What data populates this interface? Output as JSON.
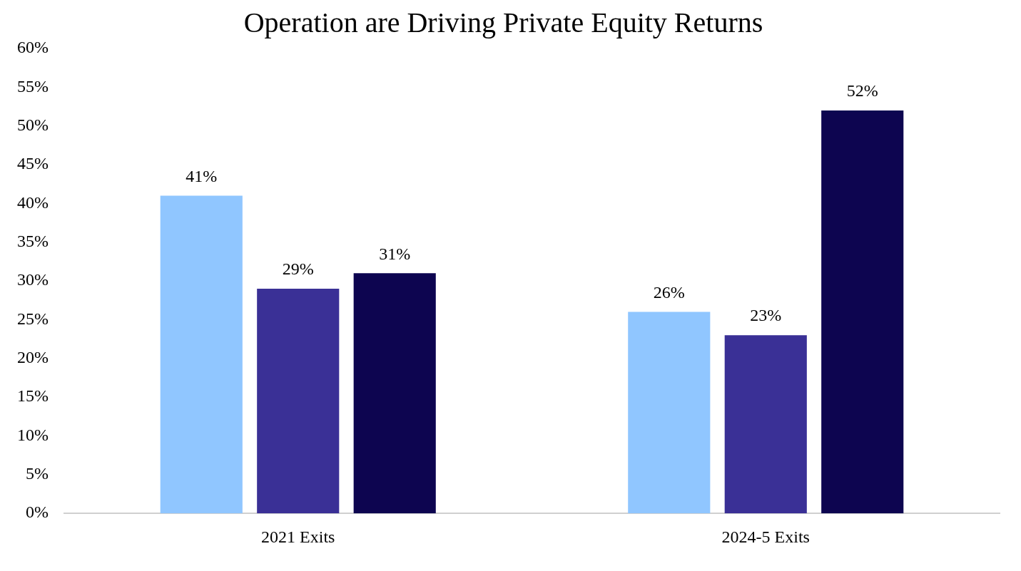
{
  "chart_data": {
    "type": "bar",
    "title": "Operation are Driving Private Equity Returns",
    "categories": [
      "2021 Exits",
      "2024-5 Exits"
    ],
    "series": [
      {
        "color": "#90c6ff",
        "values": [
          41,
          26
        ],
        "value_labels": [
          "41%",
          "26%"
        ]
      },
      {
        "color": "#3a3096",
        "values": [
          29,
          23
        ],
        "value_labels": [
          "29%",
          "23%"
        ]
      },
      {
        "color": "#0d0550",
        "values": [
          31,
          52
        ],
        "value_labels": [
          "31%",
          "52%"
        ]
      }
    ],
    "ylim": [
      0,
      60
    ],
    "yticks": [
      {
        "value": 0,
        "label": "0%"
      },
      {
        "value": 5,
        "label": "5%"
      },
      {
        "value": 10,
        "label": "10%"
      },
      {
        "value": 15,
        "label": "15%"
      },
      {
        "value": 20,
        "label": "20%"
      },
      {
        "value": 25,
        "label": "25%"
      },
      {
        "value": 30,
        "label": "30%"
      },
      {
        "value": 35,
        "label": "35%"
      },
      {
        "value": 40,
        "label": "40%"
      },
      {
        "value": 45,
        "label": "45%"
      },
      {
        "value": 50,
        "label": "50%"
      },
      {
        "value": 55,
        "label": "55%"
      },
      {
        "value": 60,
        "label": "60%"
      }
    ],
    "grid": false,
    "data_labels": true
  }
}
